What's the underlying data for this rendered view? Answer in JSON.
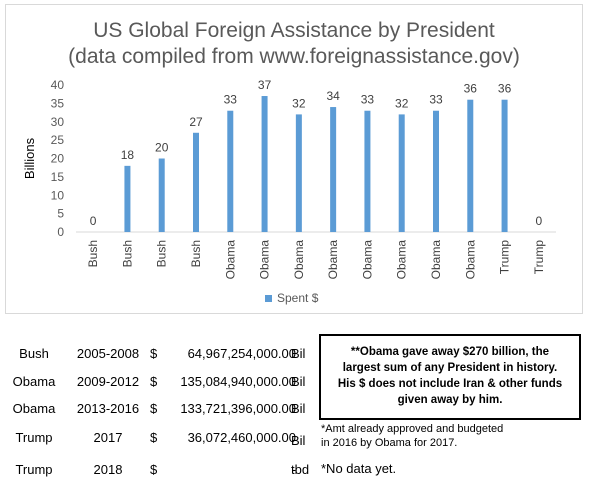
{
  "chart_data": {
    "type": "bar",
    "title": "US Global Foreign Assistance by President",
    "subtitle": "(data compiled from www.foreignassistance.gov)",
    "ylabel": "Billions",
    "xlabel": "",
    "ylim": [
      0,
      40
    ],
    "yticks": [
      0,
      5,
      10,
      15,
      20,
      25,
      30,
      35,
      40
    ],
    "grid": false,
    "legend_position": "bottom",
    "categories": [
      "Bush",
      "Bush",
      "Bush",
      "Bush",
      "Obama",
      "Obama",
      "Obama",
      "Obama",
      "Obama",
      "Obama",
      "Obama",
      "Obama",
      "Trump",
      "Trump"
    ],
    "series": [
      {
        "name": "Spent $",
        "values": [
          0,
          18,
          20,
          27,
          33,
          37,
          32,
          34,
          33,
          32,
          33,
          36,
          36,
          0
        ],
        "data_labels": [
          "0",
          "18",
          "20",
          "27",
          "33",
          "37",
          "32",
          "34",
          "33",
          "32",
          "33",
          "36",
          "36",
          "0"
        ]
      }
    ],
    "colors": {
      "bar": "#5b9bd5",
      "axis_text": "#595959"
    }
  },
  "table": {
    "rows": [
      {
        "name": "Bush",
        "years": "2005-2008",
        "currency": "$",
        "amount": "64,967,254,000.00",
        "unit": "Bil"
      },
      {
        "name": "Obama",
        "years": "2009-2012",
        "currency": "$",
        "amount": "135,084,940,000.00",
        "unit": "Bil"
      },
      {
        "name": "Obama",
        "years": "2013-2016",
        "currency": "$",
        "amount": "133,721,396,000.00",
        "unit": "Bil"
      },
      {
        "name": "Trump",
        "years": "2017",
        "currency": "$",
        "amount": "36,072,460,000.00",
        "unit": "Bil"
      },
      {
        "name": "Trump",
        "years": "2018",
        "currency": "$",
        "amount": "-",
        "unit": "tbd"
      }
    ]
  },
  "note": {
    "lines": [
      "**Obama gave away $270 billion, the",
      "largest sum of any President in history.",
      "His $ does not include Iran & other funds",
      "given away by him."
    ]
  },
  "footnotes": {
    "approved_line1": "*Amt already approved and budgeted",
    "approved_line2": "in 2016 by Obama for 2017.",
    "no_data": "*No data yet."
  }
}
